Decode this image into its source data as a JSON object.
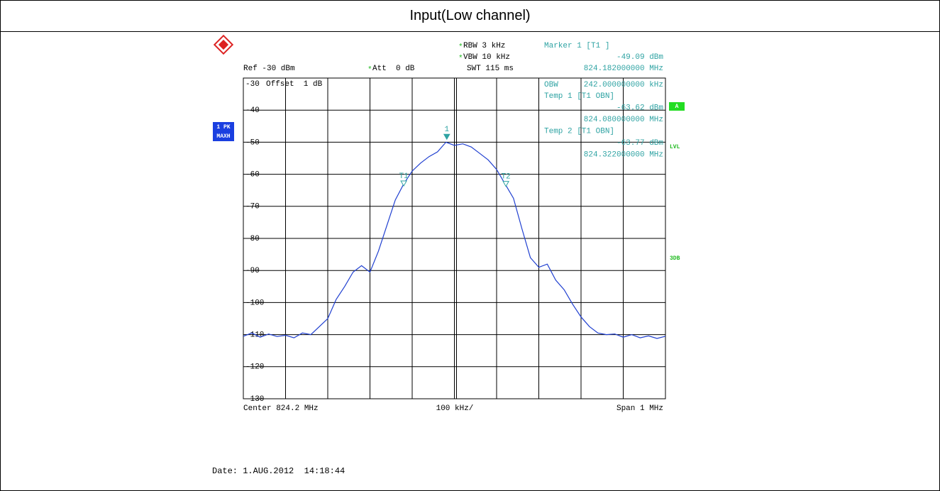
{
  "page_title": "Input(Low channel)",
  "chart_data": {
    "type": "line",
    "x": [
      823.7,
      823.72,
      823.74,
      823.76,
      823.78,
      823.8,
      823.82,
      823.84,
      823.86,
      823.88,
      823.9,
      823.92,
      823.94,
      823.96,
      823.98,
      824.0,
      824.02,
      824.04,
      824.06,
      824.08,
      824.1,
      824.12,
      824.14,
      824.16,
      824.18,
      824.2,
      824.22,
      824.24,
      824.26,
      824.28,
      824.3,
      824.32,
      824.34,
      824.36,
      824.38,
      824.4,
      824.42,
      824.44,
      824.46,
      824.48,
      824.5,
      824.52,
      824.54,
      824.56,
      824.58,
      824.6,
      824.62,
      824.64,
      824.66,
      824.68,
      824.7
    ],
    "series": [
      {
        "name": "1 PK MAXH",
        "color": "#1f3fd0",
        "values": [
          -110.5,
          -109.5,
          -110.8,
          -109.8,
          -110.6,
          -110.2,
          -111,
          -109.5,
          -110,
          -107.5,
          -105,
          -99,
          -95,
          -90.5,
          -88.5,
          -90.5,
          -84,
          -76,
          -68,
          -63,
          -59,
          -56.5,
          -54.5,
          -53,
          -50,
          -51,
          -50.5,
          -51.5,
          -53.5,
          -55.5,
          -58.5,
          -63,
          -67.5,
          -77,
          -86,
          -89,
          -88,
          -93,
          -96,
          -100.5,
          -104.5,
          -107.5,
          -109.5,
          -110,
          -109.8,
          -110.8,
          -110,
          -111,
          -110.4,
          -111.2,
          -110.5
        ]
      }
    ],
    "xlim": [
      823.7,
      824.7
    ],
    "ylim": [
      -130,
      -30
    ],
    "yticks": [
      -30,
      -40,
      -50,
      -60,
      -70,
      -80,
      -90,
      -100,
      -110,
      -120,
      -130
    ],
    "grid": true,
    "markers": [
      {
        "name": "1",
        "x": 824.182,
        "value": -49.09
      },
      {
        "name": "T1",
        "x": 824.08,
        "value": -63.62
      },
      {
        "name": "T2",
        "x": 824.322,
        "value": -63.77
      }
    ],
    "settings": {
      "stars": [
        "*",
        "*",
        "*"
      ],
      "rbw": "RBW 3 kHz",
      "vbw": "VBW 10 kHz",
      "swt": "SWT 115 ms",
      "ref": "Ref -30 dBm",
      "att": "Att  0 dB",
      "offset": "Offset  1 dB"
    },
    "marker_panel": [
      "Marker 1 [T1 ]",
      "-49.09 dBm",
      "824.182000000 MHz"
    ],
    "obw_panel": [
      "OBW",
      "242.000000000 kHz",
      "Temp 1 [T1 OBN]",
      "-63.62 dBm",
      "824.080000000 MHz",
      "Temp 2 [T1 OBN]",
      "-63.77 dBm",
      "824.322000000 MHz"
    ],
    "side_labels": {
      "trace": [
        "1 PK",
        "MAXH"
      ],
      "a": "A",
      "lvl": "LVL",
      "db3": "3DB"
    },
    "footer": {
      "center": "Center 824.2 MHz",
      "div": "100 kHz/",
      "span": "Span 1 MHz"
    },
    "date": "Date: 1.AUG.2012  14:18:44"
  }
}
